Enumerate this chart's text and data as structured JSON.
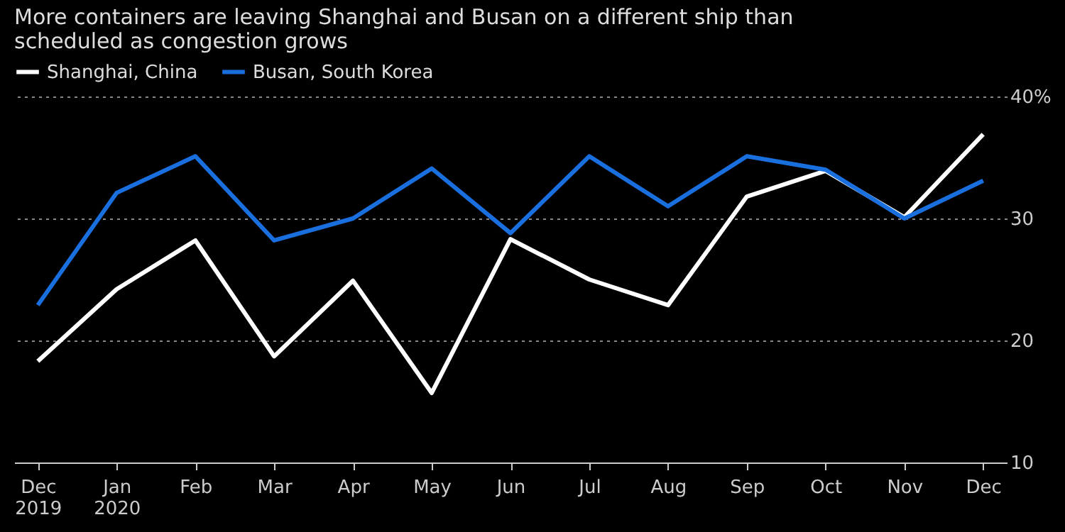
{
  "chart_data": {
    "type": "line",
    "title": "More containers are leaving Shanghai and Busan on a different ship than scheduled as congestion grows",
    "categories": [
      "Dec\n2019",
      "Jan\n2020",
      "Feb",
      "Mar",
      "Apr",
      "May",
      "Jun",
      "Jul",
      "Aug",
      "Sep",
      "Oct",
      "Nov",
      "Dec"
    ],
    "series": [
      {
        "name": "Shanghai, China",
        "color": "#ffffff",
        "values": [
          18.3,
          24.2,
          28.2,
          18.7,
          24.9,
          15.7,
          28.3,
          25.0,
          22.9,
          31.8,
          33.9,
          30.1,
          36.9
        ]
      },
      {
        "name": "Busan, South Korea",
        "color": "#1a6fdf",
        "values": [
          22.9,
          32.1,
          35.1,
          28.2,
          30.0,
          34.1,
          28.8,
          35.1,
          31.0,
          35.1,
          34.0,
          30.0,
          33.1
        ]
      }
    ],
    "ylim": [
      10,
      40
    ],
    "yticks": [
      10,
      20,
      30,
      {
        "value": 40,
        "label": "40%"
      }
    ],
    "grid": "y",
    "legend": "top left",
    "line_style": "solid",
    "marker": "none"
  }
}
